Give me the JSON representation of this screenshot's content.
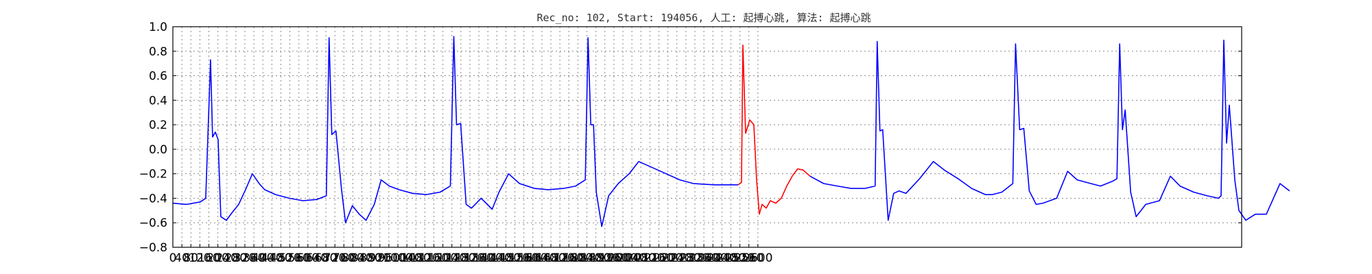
{
  "chart_data": {
    "type": "line",
    "title": "Rec_no: 102, Start: 194056, 人工: 起搏心跳, 算法: 起搏心跳",
    "xlabel": "",
    "ylabel": "",
    "xlim": [
      0,
      1560
    ],
    "ylim": [
      -0.8,
      1.0
    ],
    "grid": true,
    "x_tick_labels": [
      "0",
      "40",
      "80",
      "120",
      "160",
      "200",
      "240",
      "280",
      "320",
      "360",
      "400",
      "440",
      "480",
      "520",
      "560",
      "600",
      "640",
      "680",
      "720",
      "760",
      "800",
      "840",
      "880",
      "920",
      "960",
      "1000",
      "1040",
      "1080",
      "1120",
      "1160",
      "1200",
      "1240",
      "1280",
      "1320",
      "1360",
      "1400",
      "1440",
      "1480",
      "1520",
      "1560",
      "1600",
      "1640",
      "1680",
      "1720",
      "1760",
      "1800",
      "1840",
      "1880",
      "1920",
      "1960",
      "2000",
      "2040",
      "2080",
      "2120",
      "2160",
      "2200",
      "2240",
      "2280",
      "2320",
      "2360",
      "2400",
      "2440",
      "2480",
      "2520",
      "2560",
      "2600"
    ],
    "y_ticks": [
      -0.8,
      -0.6,
      -0.4,
      -0.2,
      0.0,
      0.2,
      0.4,
      0.6,
      0.8,
      1.0
    ],
    "y_tick_labels": [
      "−0.8",
      "−0.6",
      "−0.4",
      "−0.2",
      "0.0",
      "0.2",
      "0.4",
      "0.6",
      "0.8",
      "1.0"
    ],
    "series": [
      {
        "color": "#0000ff",
        "x": [
          0,
          20,
          40,
          48,
          55,
          58,
          62,
          66,
          70,
          78,
          86,
          96,
          106,
          116,
          126,
          134,
          150,
          170,
          190,
          210,
          224,
          228,
          232,
          238,
          246,
          252,
          262,
          272,
          282,
          294,
          304,
          316,
          330,
          350,
          370,
          390,
          405,
          410,
          414,
          420,
          428,
          436,
          450,
          466,
          476,
          490,
          506,
          528,
          548,
          570,
          588,
          602,
          606,
          610,
          614,
          618,
          626,
          636,
          650,
          666,
          680,
          700,
          720,
          740,
          760,
          790,
          810,
          825
        ],
        "y": [
          -0.44,
          -0.45,
          -0.43,
          -0.4,
          0.73,
          0.1,
          0.14,
          0.08,
          -0.55,
          -0.58,
          -0.52,
          -0.45,
          -0.33,
          -0.2,
          -0.28,
          -0.33,
          -0.37,
          -0.4,
          -0.42,
          -0.41,
          -0.38,
          0.91,
          0.12,
          0.15,
          -0.32,
          -0.6,
          -0.46,
          -0.53,
          -0.58,
          -0.45,
          -0.25,
          -0.3,
          -0.33,
          -0.36,
          -0.37,
          -0.35,
          -0.3,
          0.92,
          0.2,
          0.21,
          -0.45,
          -0.48,
          -0.4,
          -0.49,
          -0.35,
          -0.2,
          -0.28,
          -0.32,
          -0.33,
          -0.32,
          -0.3,
          -0.25,
          0.91,
          0.2,
          0.2,
          -0.35,
          -0.63,
          -0.38,
          -0.28,
          -0.2,
          -0.1,
          -0.15,
          -0.2,
          -0.25,
          -0.28,
          -0.29,
          -0.29,
          -0.29
        ]
      },
      {
        "color": "#ff0000",
        "x": [
          825,
          830,
          832,
          836,
          842,
          848,
          852,
          856,
          860,
          866,
          872,
          880,
          888,
          896,
          904,
          912,
          920,
          930
        ],
        "y": [
          -0.29,
          -0.27,
          0.85,
          0.13,
          0.24,
          0.2,
          -0.25,
          -0.53,
          -0.45,
          -0.48,
          -0.42,
          -0.44,
          -0.4,
          -0.3,
          -0.22,
          -0.16,
          -0.17,
          -0.22
        ]
      },
      {
        "color": "#0000ff",
        "x": [
          930,
          950,
          970,
          990,
          1010,
          1025,
          1028,
          1032,
          1036,
          1044,
          1052,
          1060,
          1070,
          1090,
          1110,
          1126,
          1146,
          1166,
          1186,
          1196,
          1210,
          1226,
          1230,
          1236,
          1242,
          1250,
          1260,
          1270,
          1290,
          1306,
          1320,
          1340,
          1354,
          1372,
          1378,
          1382,
          1386,
          1390,
          1398,
          1406,
          1420,
          1440,
          1456,
          1470,
          1490,
          1510,
          1526,
          1530,
          1534,
          1538,
          1542,
          1550,
          1556,
          1566,
          1580,
          1596,
          1616,
          1630
        ],
        "y": [
          -0.22,
          -0.28,
          -0.3,
          -0.32,
          -0.32,
          -0.3,
          0.88,
          0.15,
          0.16,
          -0.58,
          -0.36,
          -0.34,
          -0.36,
          -0.24,
          -0.1,
          -0.17,
          -0.24,
          -0.32,
          -0.37,
          -0.37,
          -0.35,
          -0.28,
          0.86,
          0.16,
          0.17,
          -0.34,
          -0.45,
          -0.44,
          -0.4,
          -0.18,
          -0.25,
          -0.28,
          -0.3,
          -0.26,
          -0.24,
          0.86,
          0.16,
          0.32,
          -0.35,
          -0.55,
          -0.45,
          -0.42,
          -0.22,
          -0.3,
          -0.35,
          -0.38,
          -0.4,
          -0.38,
          0.89,
          0.05,
          0.36,
          -0.25,
          -0.5,
          -0.58,
          -0.53,
          -0.53,
          -0.28,
          -0.34
        ]
      }
    ]
  }
}
